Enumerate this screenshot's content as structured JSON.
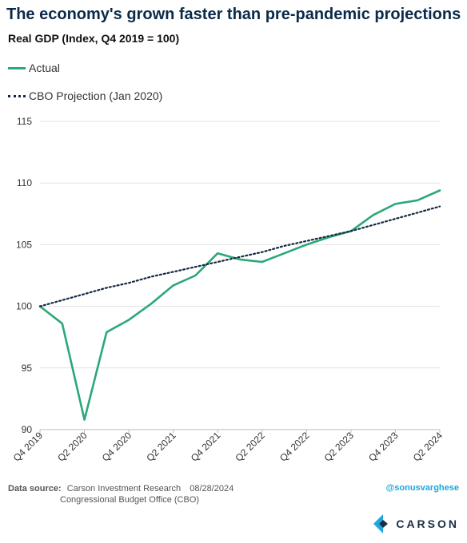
{
  "header": {
    "title": "The economy's grown faster than pre-pandemic projections",
    "subtitle": "Real GDP (Index, Q4 2019 = 100)"
  },
  "legend": {
    "actual": "Actual",
    "cbo": "CBO Projection (Jan 2020)"
  },
  "footer": {
    "source_label": "Data source:",
    "source_line1": "Carson Investment Research",
    "date": "08/28/2024",
    "source_line2": "Congressional Budget Office (CBO)",
    "handle": "@sonusvarghese",
    "brand": "CARSON"
  },
  "colors": {
    "actual": "#2aa878",
    "projection": "#132a45",
    "title": "#0b2a4a",
    "handle": "#1ca8e0"
  },
  "icons": {
    "title_emoji": "flexed-biceps-icon",
    "brand_logo": "carson-logo-icon"
  },
  "chart_data": {
    "type": "line",
    "title": "The economy's grown faster than pre-pandemic projections",
    "subtitle": "Real GDP (Index, Q4 2019 = 100)",
    "x": [
      "Q4 2019",
      "Q1 2020",
      "Q2 2020",
      "Q3 2020",
      "Q4 2020",
      "Q1 2021",
      "Q2 2021",
      "Q3 2021",
      "Q4 2021",
      "Q1 2022",
      "Q2 2022",
      "Q3 2022",
      "Q4 2022",
      "Q1 2023",
      "Q2 2023",
      "Q3 2023",
      "Q4 2023",
      "Q1 2024",
      "Q2 2024"
    ],
    "tick_labels": [
      "Q4 2019",
      "Q2 2020",
      "Q4 2020",
      "Q2 2021",
      "Q4 2021",
      "Q2 2022",
      "Q4 2022",
      "Q2 2023",
      "Q4 2023",
      "Q2 2024"
    ],
    "yticks": [
      "90",
      "95",
      "100",
      "105",
      "110",
      "115"
    ],
    "ylim": [
      90,
      115
    ],
    "grid": "horizontal",
    "legend_position": "top-left",
    "series": [
      {
        "name": "Actual",
        "style": "solid",
        "values": [
          100,
          98.6,
          90.8,
          97.9,
          98.9,
          100.2,
          101.7,
          102.5,
          104.3,
          103.8,
          103.6,
          104.3,
          105.0,
          105.6,
          106.1,
          107.4,
          108.3,
          108.6,
          109.4
        ]
      },
      {
        "name": "CBO Projection (Jan 2020)",
        "style": "dotted",
        "values": [
          100,
          100.5,
          101.0,
          101.5,
          101.9,
          102.4,
          102.8,
          103.2,
          103.6,
          104.0,
          104.4,
          104.9,
          105.3,
          105.7,
          106.1,
          106.6,
          107.1,
          107.6,
          108.1
        ]
      }
    ]
  }
}
